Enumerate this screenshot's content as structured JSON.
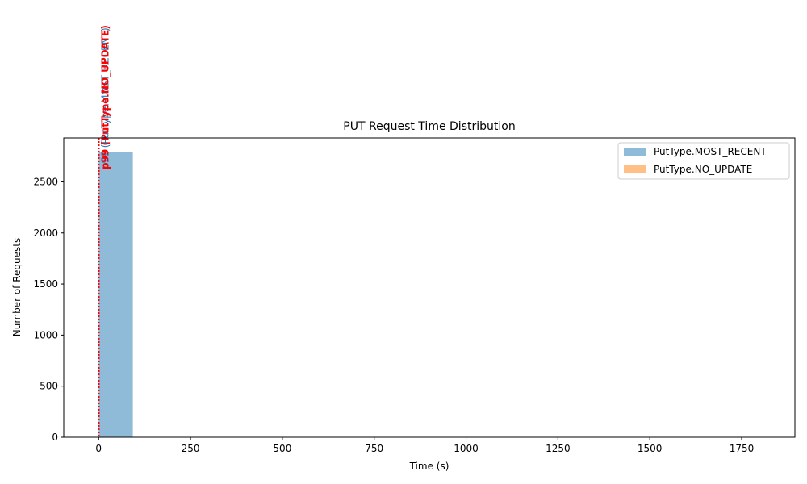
{
  "chart_data": {
    "type": "histogram",
    "title": "PUT Request Time Distribution",
    "xlabel": "Time (s)",
    "ylabel": "Number of Requests",
    "xlim": [
      -95,
      1895
    ],
    "ylim": [
      0,
      2930
    ],
    "xticks": [
      0,
      250,
      500,
      750,
      1000,
      1250,
      1500,
      1750
    ],
    "yticks": [
      0,
      500,
      1000,
      1500,
      2000,
      2500
    ],
    "grid": false,
    "legend_position": "top-right",
    "series": [
      {
        "name": "PutType.MOST_RECENT",
        "color": "#1f77b4",
        "opacity": 0.5,
        "bins": [
          {
            "x0": 0,
            "x1": 93,
            "count": 2790
          }
        ]
      },
      {
        "name": "PutType.NO_UPDATE",
        "color": "#ff7f0e",
        "opacity": 0.5,
        "bins": []
      }
    ],
    "annotations": [
      {
        "x": 1,
        "label": "p99 (PutType.MOST_RECENT)",
        "color": "#1f77b4"
      },
      {
        "x": 1,
        "label": "p99 (PutType.NO_UPDATE)",
        "color": "#ff0000"
      }
    ]
  }
}
